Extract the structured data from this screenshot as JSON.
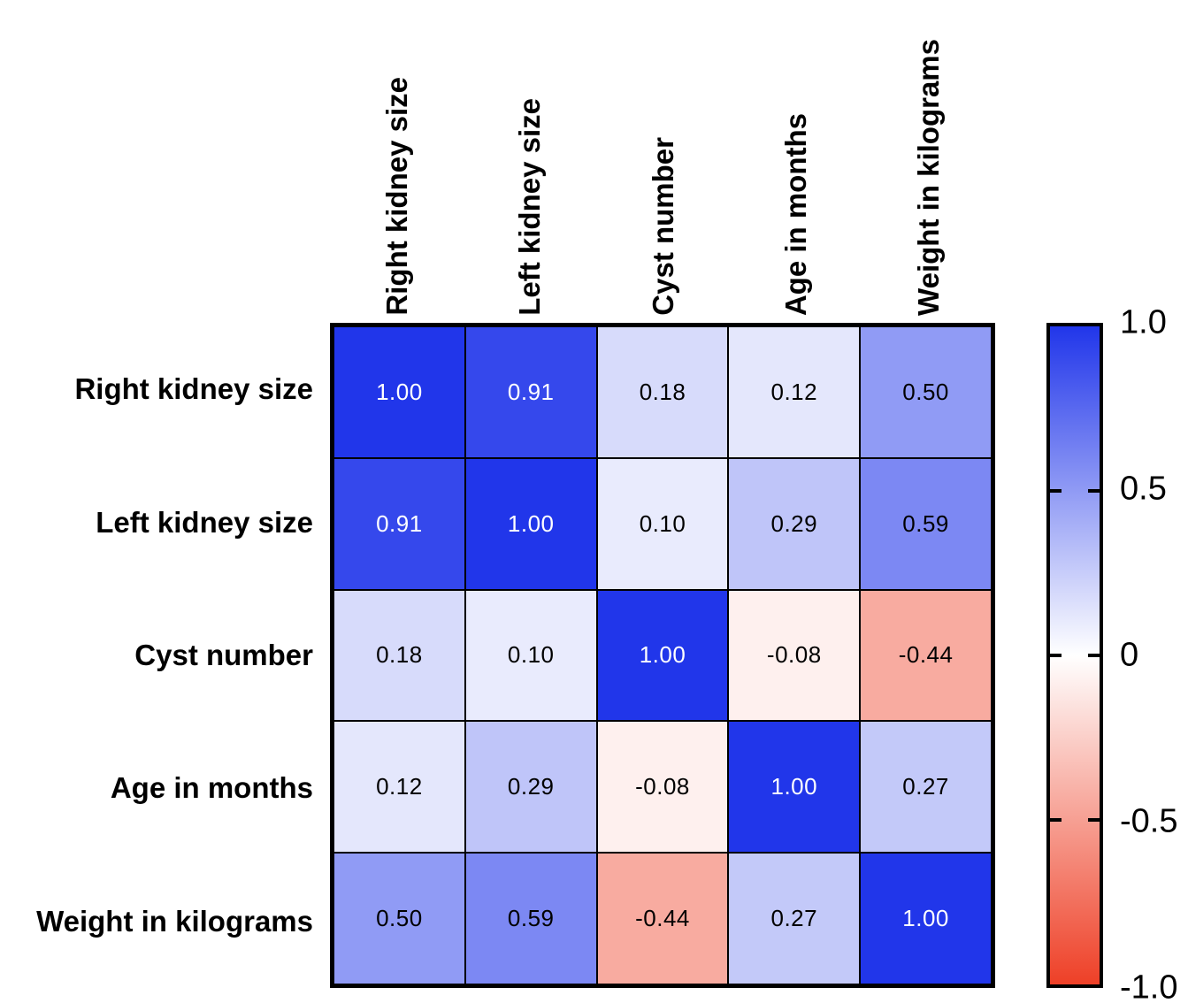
{
  "chart_data": {
    "type": "heatmap",
    "title": "",
    "categories": [
      "Right kidney size",
      "Left kidney size",
      "Cyst number",
      "Age in months",
      "Weight in kilograms"
    ],
    "matrix": [
      [
        1.0,
        0.91,
        0.18,
        0.12,
        0.5
      ],
      [
        0.91,
        1.0,
        0.1,
        0.29,
        0.59
      ],
      [
        0.18,
        0.1,
        1.0,
        -0.08,
        -0.44
      ],
      [
        0.12,
        0.29,
        -0.08,
        1.0,
        0.27
      ],
      [
        0.5,
        0.59,
        -0.44,
        0.27,
        1.0
      ]
    ],
    "value_decimals": 2,
    "colorbar": {
      "tick_labels": [
        "1.0",
        "0.5",
        "0",
        "-0.5",
        "-1.0"
      ],
      "tick_values": [
        1,
        0.5,
        0,
        -0.5,
        -1
      ],
      "min": -1,
      "max": 1,
      "position": "right"
    },
    "colors": {
      "positive_max": "#2136ea",
      "zero": "#ffffff",
      "negative_max": "#ee4027",
      "cell_text_dark": "#000000",
      "cell_text_light": "#ffffff",
      "grid_line": "#000000"
    },
    "layout": {
      "grid": "on",
      "x_labels_rotation": 90,
      "white_text_threshold": 0.85
    }
  }
}
